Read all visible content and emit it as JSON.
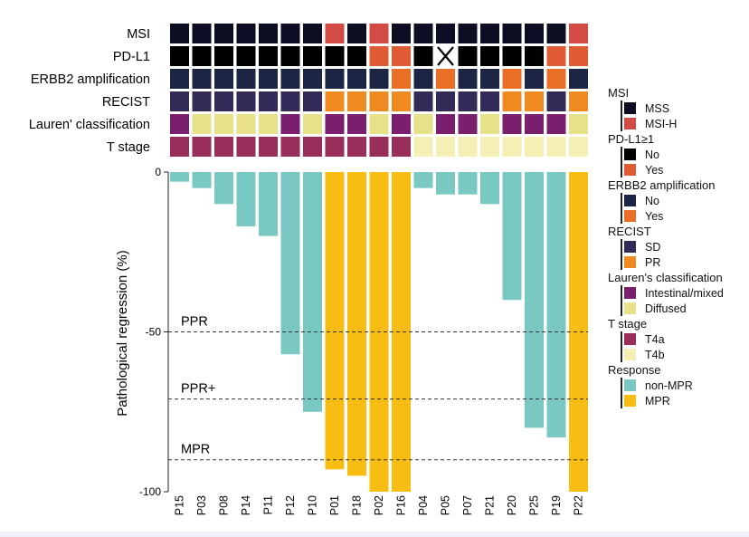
{
  "chart_data": {
    "type": "bar",
    "ylabel": "Pathological regression (%)",
    "ylim": [
      -100,
      0
    ],
    "yticks": [
      0,
      -50,
      -100
    ],
    "categories": [
      "P15",
      "P03",
      "P08",
      "P14",
      "P11",
      "P12",
      "P10",
      "P01",
      "P18",
      "P02",
      "P16",
      "P04",
      "P05",
      "P07",
      "P21",
      "P20",
      "P25",
      "P19",
      "P22"
    ],
    "values": [
      -3,
      -5,
      -10,
      -17,
      -20,
      -57,
      -75,
      -93,
      -95,
      -100,
      -100,
      -5,
      -7,
      -7,
      -10,
      -40,
      -80,
      -83,
      -100
    ],
    "response": [
      "non-MPR",
      "non-MPR",
      "non-MPR",
      "non-MPR",
      "non-MPR",
      "non-MPR",
      "non-MPR",
      "MPR",
      "MPR",
      "MPR",
      "MPR",
      "non-MPR",
      "non-MPR",
      "non-MPR",
      "non-MPR",
      "non-MPR",
      "non-MPR",
      "non-MPR",
      "MPR"
    ],
    "thresholds": [
      {
        "label": "PPR",
        "value": -50
      },
      {
        "label": "PPR+",
        "value": -71
      },
      {
        "label": "MPR",
        "value": -90
      }
    ],
    "heatmap_rows": [
      {
        "label": "MSI",
        "legend": "MSI",
        "values": [
          "MSS",
          "MSS",
          "MSS",
          "MSS",
          "MSS",
          "MSS",
          "MSS",
          "MSI-H",
          "MSS",
          "MSI-H",
          "MSS",
          "MSS",
          "MSS",
          "MSS",
          "MSS",
          "MSS",
          "MSS",
          "MSS",
          "MSI-H"
        ]
      },
      {
        "label": "PD-L1",
        "legend": "PD-L1≥1",
        "values": [
          "No",
          "No",
          "No",
          "No",
          "No",
          "No",
          "No",
          "No",
          "No",
          "Yes",
          "Yes",
          "No",
          "NA",
          "No",
          "No",
          "No",
          "No",
          "Yes",
          "Yes"
        ]
      },
      {
        "label": "ERBB2 amplification",
        "legend": "ERBB2 amplification",
        "values": [
          "No",
          "No",
          "No",
          "No",
          "No",
          "No",
          "No",
          "No",
          "No",
          "No",
          "Yes",
          "No",
          "Yes",
          "No",
          "No",
          "Yes",
          "No",
          "Yes",
          "No"
        ]
      },
      {
        "label": "RECIST",
        "legend": "RECIST",
        "values": [
          "SD",
          "SD",
          "SD",
          "SD",
          "SD",
          "SD",
          "SD",
          "PR",
          "PR",
          "PR",
          "PR",
          "SD",
          "SD",
          "SD",
          "SD",
          "PR",
          "PR",
          "SD",
          "PR"
        ]
      },
      {
        "label": "Lauren' classification",
        "legend": "Lauren's classification",
        "values": [
          "Intestinal/mixed",
          "Diffused",
          "Diffused",
          "Diffused",
          "Diffused",
          "Intestinal/mixed",
          "Diffused",
          "Intestinal/mixed",
          "Intestinal/mixed",
          "Diffused",
          "Intestinal/mixed",
          "Diffused",
          "Intestinal/mixed",
          "Intestinal/mixed",
          "Diffused",
          "Intestinal/mixed",
          "Intestinal/mixed",
          "Intestinal/mixed",
          "Diffused"
        ]
      },
      {
        "label": "T stage",
        "legend": "T stage",
        "values": [
          "T4a",
          "T4a",
          "T4a",
          "T4a",
          "T4a",
          "T4a",
          "T4a",
          "T4a",
          "T4a",
          "T4a",
          "T4a",
          "T4b",
          "T4b",
          "T4b",
          "T4b",
          "T4b",
          "T4b",
          "T4b",
          "T4b"
        ]
      }
    ],
    "legend": [
      {
        "title": "MSI",
        "items": [
          {
            "label": "MSS",
            "color": "#0d0d24"
          },
          {
            "label": "MSI-H",
            "color": "#d24b45"
          }
        ]
      },
      {
        "title": "PD-L1≥1",
        "items": [
          {
            "label": "No",
            "color": "#000000"
          },
          {
            "label": "Yes",
            "color": "#e05b33"
          }
        ]
      },
      {
        "title": "ERBB2 amplification",
        "items": [
          {
            "label": "No",
            "color": "#1d2545"
          },
          {
            "label": "Yes",
            "color": "#ea6f26"
          }
        ]
      },
      {
        "title": "RECIST",
        "items": [
          {
            "label": "SD",
            "color": "#322b58"
          },
          {
            "label": "PR",
            "color": "#ef8a20"
          }
        ]
      },
      {
        "title": "Lauren's classification",
        "items": [
          {
            "label": "Intestinal/mixed",
            "color": "#7a1f6e"
          },
          {
            "label": "Diffused",
            "color": "#e7e28a"
          }
        ]
      },
      {
        "title": "T stage",
        "items": [
          {
            "label": "T4a",
            "color": "#9a2e5b"
          },
          {
            "label": "T4b",
            "color": "#f4efb5"
          }
        ]
      },
      {
        "title": "Response",
        "items": [
          {
            "label": "non-MPR",
            "color": "#79c9c2"
          },
          {
            "label": "MPR",
            "color": "#f7bd12"
          }
        ]
      }
    ],
    "grid": false,
    "legend_position": "right"
  }
}
